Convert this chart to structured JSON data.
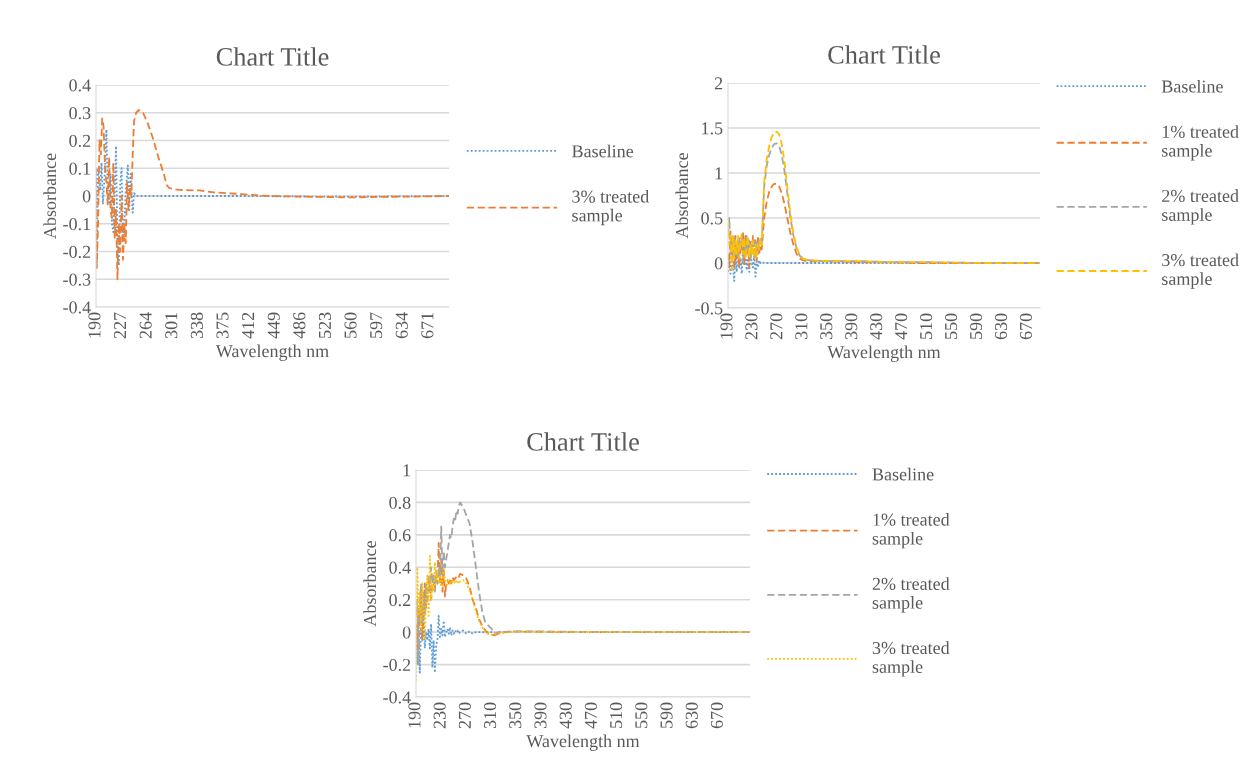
{
  "chart_data": [
    {
      "type": "line",
      "title": "Chart Title",
      "xlabel": "Wavelength nm",
      "ylabel": "Absorbance",
      "xlim": [
        190,
        700
      ],
      "xticks": [
        190,
        227,
        264,
        301,
        338,
        375,
        412,
        449,
        486,
        523,
        560,
        597,
        634,
        671
      ],
      "ylim": [
        -0.4,
        0.4
      ],
      "yticks": [
        -0.4,
        -0.3,
        -0.2,
        -0.1,
        0,
        0.1,
        0.2,
        0.3,
        0.4
      ],
      "grid": "y",
      "legend": "right",
      "series": [
        {
          "name": "Baseline",
          "color": "#5b9bd5",
          "line_style": "dotted",
          "x": [
            190,
            191,
            193,
            196,
            198,
            200,
            203,
            205,
            207,
            209,
            211,
            213,
            215,
            217,
            219,
            221,
            223,
            225,
            227,
            229,
            231,
            233,
            236,
            238,
            240,
            243,
            245,
            248,
            260,
            300,
            400,
            500,
            600,
            700
          ],
          "values": [
            0.08,
            -0.26,
            0.1,
            0.02,
            0.12,
            -0.03,
            0.1,
            0.24,
            0.02,
            -0.03,
            0.08,
            -0.1,
            -0.13,
            0.03,
            0.18,
            -0.2,
            -0.25,
            0.05,
            0.1,
            -0.15,
            -0.1,
            0.02,
            0.11,
            -0.05,
            0.08,
            -0.06,
            0.01,
            0,
            0,
            0,
            0,
            -0.002,
            -0.002,
            0
          ]
        },
        {
          "name": "3% treated\nsample",
          "color": "#ed7d31",
          "line_style": "dashed",
          "x": [
            190,
            191,
            193,
            195,
            197,
            199,
            201,
            203,
            205,
            207,
            209,
            211,
            213,
            215,
            217,
            219,
            221,
            223,
            225,
            227,
            229,
            231,
            233,
            235,
            237,
            239,
            241,
            243,
            245,
            248,
            252,
            258,
            265,
            272,
            280,
            288,
            292,
            296,
            310,
            340,
            360,
            380,
            400,
            420,
            440,
            480,
            560,
            600,
            650,
            700
          ],
          "values": [
            0.1,
            -0.26,
            -0.1,
            0.2,
            0.15,
            0.28,
            0.25,
            0.1,
            0.05,
            -0.03,
            0.14,
            -0.05,
            -0.08,
            0.12,
            -0.15,
            -0.05,
            -0.3,
            -0.1,
            -0.2,
            0,
            -0.23,
            -0.1,
            -0.17,
            0.05,
            -0.05,
            0.03,
            0,
            0.15,
            0.27,
            0.3,
            0.31,
            0.3,
            0.26,
            0.21,
            0.14,
            0.08,
            0.04,
            0.028,
            0.022,
            0.02,
            0.013,
            0.01,
            0.007,
            0.003,
            0,
            -0.002,
            -0.005,
            -0.003,
            -0.002,
            0
          ]
        }
      ]
    },
    {
      "type": "line",
      "title": "Chart Title",
      "xlabel": "Wavelength nm",
      "ylabel": "Absorbance",
      "xlim": [
        190,
        690
      ],
      "xticks": [
        190,
        230,
        270,
        310,
        350,
        390,
        430,
        470,
        510,
        550,
        590,
        630,
        670
      ],
      "ylim": [
        -0.5,
        2
      ],
      "yticks": [
        -0.5,
        0,
        0.5,
        1,
        1.5,
        2
      ],
      "grid": "y",
      "legend": "right",
      "x": [
        190,
        192,
        194,
        196,
        198,
        200,
        202,
        204,
        206,
        208,
        210,
        212,
        214,
        216,
        218,
        220,
        222,
        224,
        226,
        228,
        230,
        232,
        234,
        236,
        238,
        240,
        242,
        244,
        248,
        252,
        256,
        260,
        264,
        268,
        272,
        276,
        280,
        285,
        290,
        295,
        300,
        305,
        310,
        320,
        350,
        400,
        450,
        500,
        600,
        690
      ],
      "series": [
        {
          "name": "Baseline",
          "color": "#5b9bd5",
          "line_style": "dotted",
          "values": [
            -0.1,
            0.05,
            -0.12,
            0.1,
            -0.05,
            -0.2,
            0.08,
            -0.1,
            0.12,
            -0.05,
            0.05,
            -0.12,
            0.15,
            -0.03,
            0.1,
            -0.08,
            0.05,
            -0.1,
            0.12,
            0,
            -0.05,
            0.08,
            -0.15,
            0.02,
            -0.05,
            0.03,
            0,
            0.01,
            0,
            0,
            0,
            0,
            0,
            0,
            0,
            0,
            0,
            0,
            0,
            0,
            0,
            0,
            0,
            0,
            0,
            0,
            0,
            0,
            0,
            0
          ]
        },
        {
          "name": "1% treated\nsample",
          "color": "#ed7d31",
          "line_style": "dashed",
          "values": [
            0.1,
            -0.05,
            0.35,
            0.1,
            0.2,
            -0.05,
            0.3,
            0.05,
            0.25,
            -0.05,
            0.2,
            0.15,
            0.35,
            -0.02,
            0.3,
            0.1,
            0.2,
            -0.05,
            0.25,
            0.1,
            0.3,
            0.05,
            0.25,
            0.02,
            0.28,
            0.1,
            0.2,
            0.15,
            0.5,
            0.68,
            0.79,
            0.85,
            0.88,
            0.88,
            0.85,
            0.78,
            0.67,
            0.5,
            0.33,
            0.2,
            0.1,
            0.05,
            0.03,
            0.02,
            0.02,
            0.01,
            0.01,
            0,
            0,
            0
          ]
        },
        {
          "name": "2% treated\nsample",
          "color": "#a5a5a5",
          "line_style": "dashed",
          "values": [
            0.3,
            0.5,
            0.1,
            0.25,
            0.05,
            0.3,
            0.1,
            0.2,
            0.05,
            0.28,
            0.15,
            0.3,
            0,
            0.25,
            0.1,
            0.3,
            0.12,
            0.25,
            0.02,
            0.2,
            0.1,
            0.28,
            0.05,
            0.22,
            0.1,
            0.25,
            0.2,
            0.22,
            0.85,
            1.08,
            1.2,
            1.28,
            1.32,
            1.33,
            1.3,
            1.2,
            1.05,
            0.78,
            0.5,
            0.3,
            0.16,
            0.08,
            0.05,
            0.03,
            0.02,
            0.02,
            0.01,
            0.01,
            0,
            0
          ]
        },
        {
          "name": "3% treated\nsample",
          "color": "#ffc000",
          "line_style": "dashed",
          "values": [
            0.48,
            0.2,
            0.3,
            -0.08,
            0.3,
            0.05,
            0.25,
            0.1,
            0.3,
            0.05,
            0.25,
            0.32,
            0.1,
            0.28,
            0.05,
            0.22,
            0.3,
            0.05,
            0.2,
            0.1,
            0.25,
            0.05,
            0.2,
            0.08,
            0.2,
            0.15,
            0.28,
            0.2,
            0.9,
            1.15,
            1.3,
            1.4,
            1.45,
            1.46,
            1.43,
            1.33,
            1.15,
            0.85,
            0.55,
            0.32,
            0.17,
            0.09,
            0.05,
            0.03,
            0.02,
            0.02,
            0.01,
            0.01,
            0,
            0
          ]
        }
      ]
    },
    {
      "type": "line",
      "title": "Chart Title",
      "xlabel": "Wavelength nm",
      "ylabel": "Absorbance",
      "xlim": [
        190,
        720
      ],
      "xticks": [
        190,
        230,
        270,
        310,
        350,
        390,
        430,
        470,
        510,
        550,
        590,
        630,
        670
      ],
      "ylim": [
        -0.4,
        1
      ],
      "yticks": [
        -0.4,
        -0.2,
        0,
        0.2,
        0.4,
        0.6,
        0.8,
        1
      ],
      "grid": "y",
      "legend": "right",
      "x": [
        190,
        192,
        194,
        196,
        198,
        200,
        202,
        204,
        206,
        208,
        210,
        212,
        214,
        216,
        218,
        220,
        222,
        224,
        226,
        228,
        230,
        232,
        234,
        236,
        238,
        240,
        242,
        244,
        246,
        248,
        250,
        252,
        254,
        256,
        258,
        260,
        265,
        270,
        275,
        280,
        285,
        290,
        295,
        300,
        305,
        310,
        315,
        320,
        330,
        340,
        350,
        380,
        420,
        500,
        600,
        720
      ],
      "series": [
        {
          "name": "Baseline",
          "color": "#5b9bd5",
          "line_style": "dotted",
          "values": [
            0.02,
            -0.2,
            0.05,
            -0.25,
            0.03,
            -0.05,
            0.1,
            -0.1,
            0,
            -0.05,
            0.02,
            -0.1,
            0.05,
            -0.22,
            -0.05,
            -0.25,
            -0.08,
            -0.05,
            0.1,
            -0.03,
            0.02,
            -0.02,
            0.07,
            -0.03,
            0,
            0.02,
            -0.01,
            0.03,
            -0.02,
            0.01,
            -0.01,
            0.01,
            0,
            0.01,
            -0.01,
            0,
            0.01,
            -0.01,
            0.005,
            -0.01,
            0,
            0,
            0,
            0,
            0,
            0,
            0,
            null,
            null,
            null,
            null,
            null,
            null,
            null,
            null,
            null
          ]
        },
        {
          "name": "1% treated\nsample",
          "color": "#ed7d31",
          "line_style": "dashed",
          "values": [
            0.05,
            -0.1,
            0.15,
            0.05,
            0.25,
            -0.05,
            0.1,
            0.3,
            0.15,
            0.2,
            0.25,
            0.3,
            0.2,
            0.3,
            0.35,
            0.28,
            0.32,
            0.3,
            0.55,
            0.3,
            0.45,
            0.25,
            0.38,
            0.22,
            0.3,
            0.32,
            0.3,
            0.33,
            0.3,
            0.34,
            0.32,
            0.33,
            0.34,
            0.35,
            0.34,
            0.36,
            0.35,
            0.33,
            0.28,
            0.2,
            0.15,
            0.08,
            0.04,
            0.01,
            -0.01,
            -0.015,
            -0.02,
            -0.01,
            0,
            0.005,
            0.003,
            0.003,
            0,
            0,
            0,
            0
          ]
        },
        {
          "name": "2% treated\nsample",
          "color": "#a5a5a5",
          "line_style": "dashed",
          "values": [
            0.1,
            0.2,
            -0.2,
            0.15,
            0.3,
            0.05,
            0.25,
            0.1,
            0.3,
            0.2,
            0.35,
            0.25,
            0.4,
            0.3,
            0.35,
            0.25,
            0.38,
            0.3,
            0.4,
            0.35,
            0.65,
            0.35,
            0.5,
            0.4,
            0.45,
            0.5,
            0.55,
            0.6,
            0.58,
            0.65,
            0.7,
            0.68,
            0.75,
            0.73,
            0.78,
            0.8,
            0.77,
            0.72,
            0.67,
            0.55,
            0.4,
            0.25,
            0.13,
            0.06,
            0.04,
            0.02,
            -0.01,
            0,
            0.002,
            0.002,
            0.005,
            0.005,
            0.003,
            0,
            0,
            0
          ]
        },
        {
          "name": "3% treated\nsample",
          "color": "#ffc000",
          "line_style": "dotted",
          "values": [
            -0.3,
            0.4,
            0.1,
            0.25,
            0,
            0.3,
            0.15,
            -0.05,
            0.2,
            0.35,
            0.1,
            0.47,
            0.2,
            0.3,
            0.25,
            0.43,
            0.3,
            0.38,
            0.3,
            0.35,
            0.28,
            0.3,
            0.4,
            0.32,
            0.28,
            0.3,
            0.33,
            0.3,
            0.32,
            0.31,
            0.3,
            0.32,
            0.31,
            0.3,
            0.32,
            0.31,
            0.32,
            0.3,
            0.26,
            0.2,
            0.13,
            0.07,
            0.03,
            0,
            -0.01,
            -0.015,
            -0.015,
            -0.01,
            -0.005,
            0,
            0.003,
            0.003,
            0,
            0,
            0,
            0
          ]
        }
      ]
    }
  ]
}
